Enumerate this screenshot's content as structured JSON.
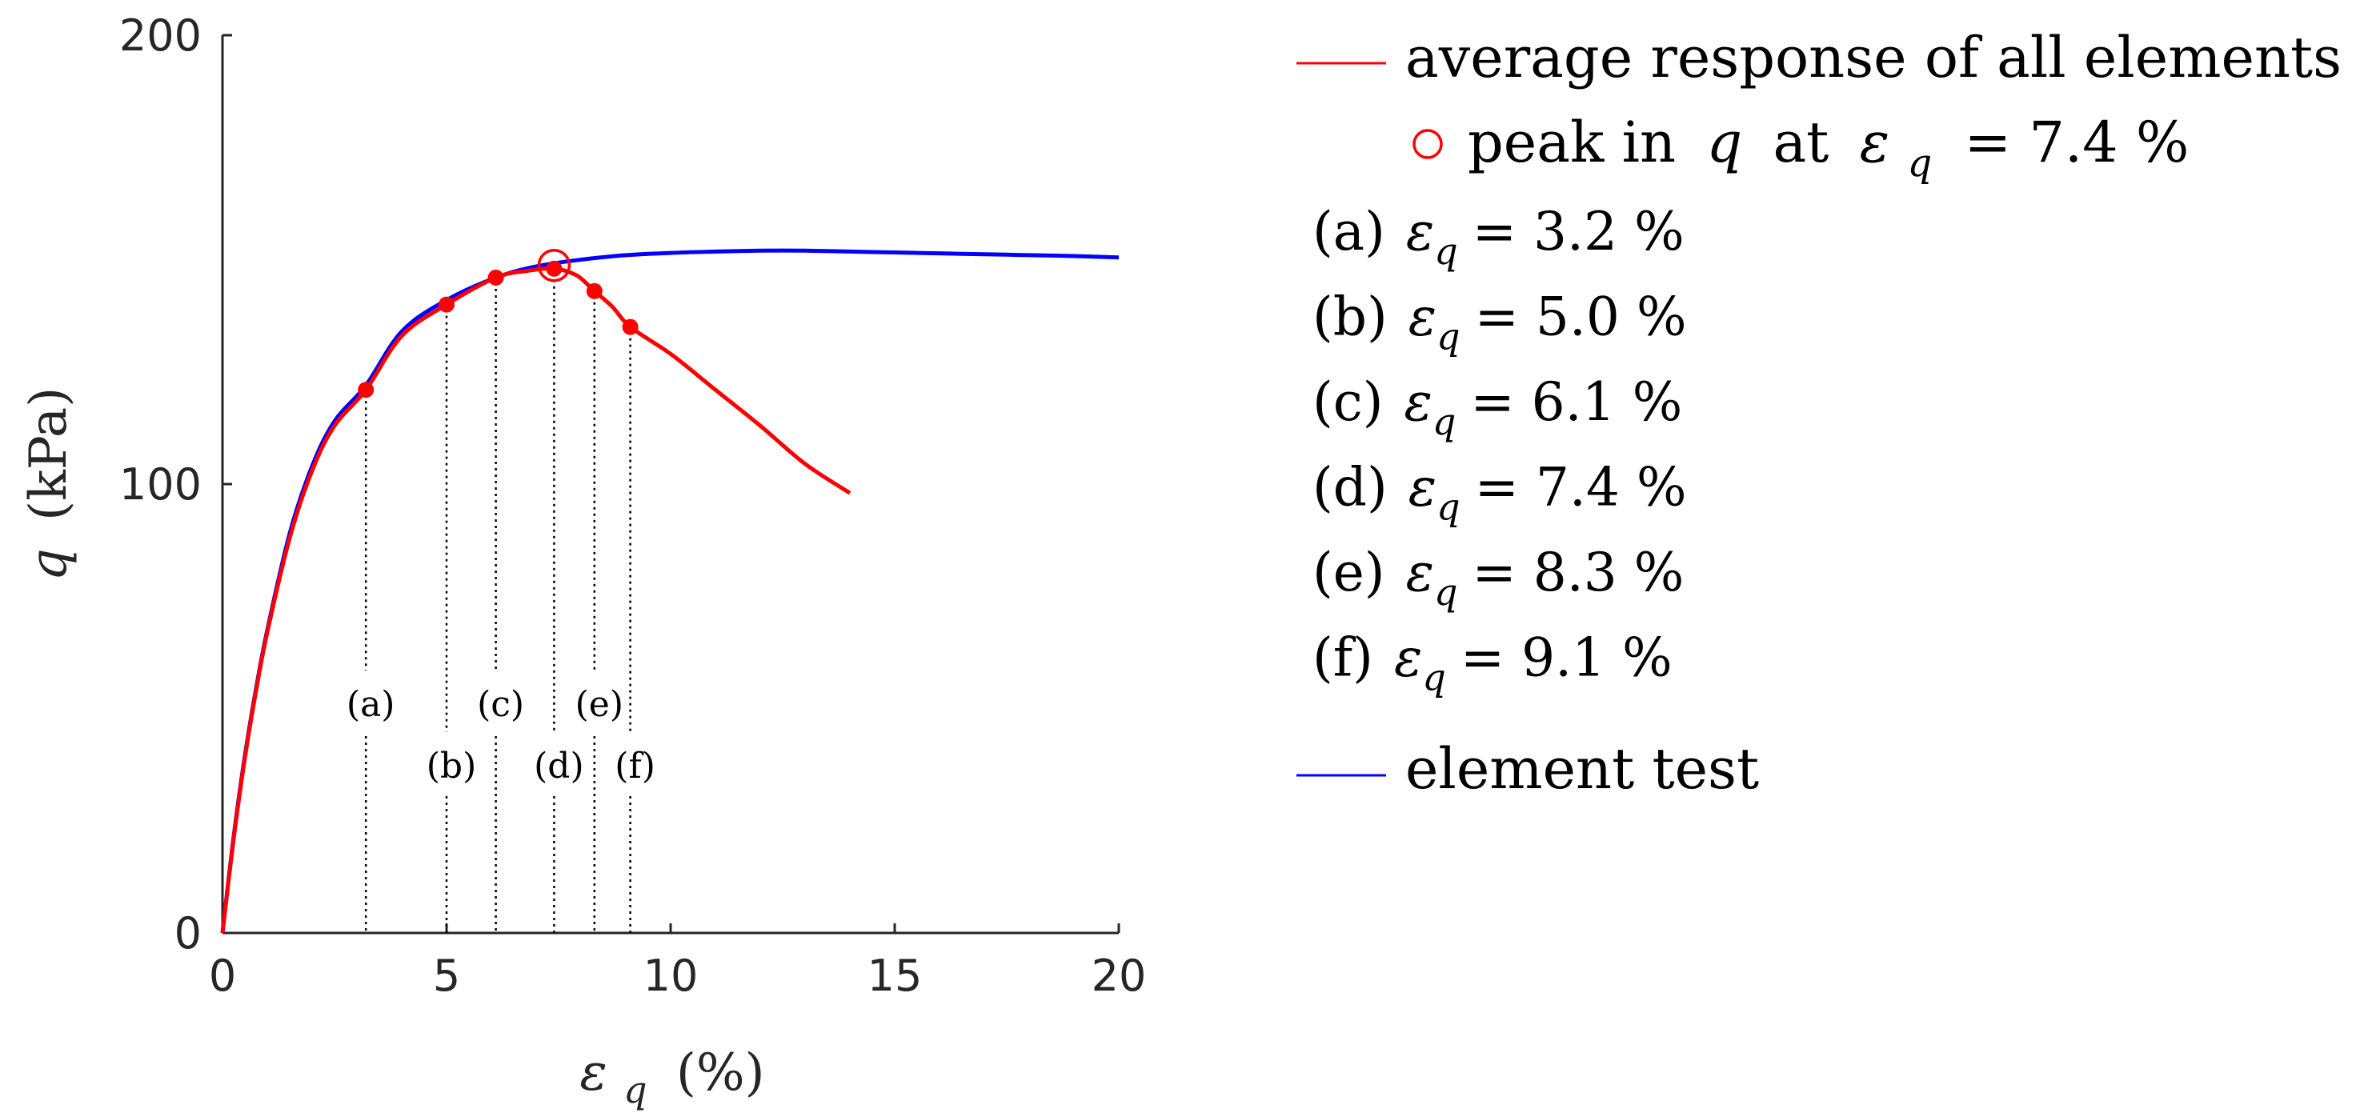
{
  "chart_data": {
    "type": "line",
    "title": "",
    "xlabel": {
      "symbol": "ε",
      "subscript": "q",
      "unit": "(%)"
    },
    "ylabel": {
      "symbol": "q",
      "unit": "(kPa)"
    },
    "xlim": [
      0,
      20
    ],
    "ylim": [
      0,
      200
    ],
    "xticks": [
      0,
      5,
      10,
      15,
      20
    ],
    "yticks": [
      0,
      100,
      200
    ],
    "grid": false,
    "series": [
      {
        "name": "average response of all elements",
        "color": "#ff0000",
        "x": [
          0,
          0.25,
          0.5,
          0.75,
          1.0,
          1.5,
          2.0,
          2.5,
          3.2,
          4.0,
          5.0,
          6.1,
          6.8,
          7.4,
          7.9,
          8.3,
          8.7,
          9.1,
          10.0,
          11.0,
          12.0,
          13.0,
          14.0
        ],
        "y": [
          0,
          21,
          39,
          54,
          67,
          88,
          103,
          113,
          121,
          133,
          140,
          146,
          147.5,
          148,
          146.5,
          143,
          139.5,
          135,
          129,
          121,
          113,
          104.5,
          98
        ]
      },
      {
        "name": "element test",
        "color": "#0000ff",
        "x": [
          0,
          0.25,
          0.5,
          0.75,
          1.0,
          1.5,
          2.0,
          2.5,
          3.2,
          4.0,
          5.0,
          6.1,
          7.0,
          8.0,
          9.0,
          10.0,
          11.0,
          12.0,
          13.0,
          14.0,
          15.0,
          16.0,
          17.0,
          18.0,
          19.0,
          20.0
        ],
        "y": [
          0,
          21.5,
          39.5,
          54.5,
          67.5,
          89,
          104,
          114,
          122,
          134,
          141,
          146,
          148.5,
          150,
          151,
          151.5,
          151.8,
          152,
          152,
          151.8,
          151.6,
          151.4,
          151.2,
          151,
          150.8,
          150.5
        ]
      }
    ],
    "peak": {
      "x": 7.4,
      "y": 148,
      "color": "#ff0000"
    },
    "markers": [
      {
        "label": "(a)",
        "x": 3.2,
        "y": 121
      },
      {
        "label": "(b)",
        "x": 5.0,
        "y": 140
      },
      {
        "label": "(c)",
        "x": 6.1,
        "y": 146
      },
      {
        "label": "(d)",
        "x": 7.4,
        "y": 148
      },
      {
        "label": "(e)",
        "x": 8.3,
        "y": 143
      },
      {
        "label": "(f)",
        "x": 9.1,
        "y": 135
      }
    ],
    "legend_position": "right",
    "legend": {
      "average_label": "average response of all elements",
      "peak_prefix": "peak in",
      "peak_symbol": "q",
      "peak_mid": "at",
      "eps": "ε",
      "sub": "q",
      "peak_value": "= 7.4 %",
      "element_label": "element test"
    },
    "cases": [
      {
        "tag": "(a)",
        "value": "= 3.2 %"
      },
      {
        "tag": "(b)",
        "value": "= 5.0 %"
      },
      {
        "tag": "(c)",
        "value": "= 6.1 %"
      },
      {
        "tag": "(d)",
        "value": "= 7.4 %"
      },
      {
        "tag": "(e)",
        "value": "= 8.3 %"
      },
      {
        "tag": "(f)",
        "value": "= 9.1 %"
      }
    ]
  }
}
